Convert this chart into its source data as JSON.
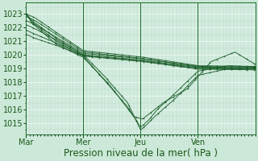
{
  "xlabel": "Pression niveau de la mer( hPa )",
  "bg_color": "#cce8d8",
  "plot_bg_color": "#d4ece0",
  "grid_color_major": "#b0d8c0",
  "grid_color_minor": "#c0e0cc",
  "grid_color_white": "#e8f8f0",
  "line_color": "#1a5c28",
  "ylim": [
    1014.2,
    1023.8
  ],
  "yticks": [
    1015,
    1016,
    1017,
    1018,
    1019,
    1020,
    1021,
    1022,
    1023
  ],
  "days": [
    "Mar",
    "Mer",
    "Jeu",
    "Ven"
  ],
  "day_positions": [
    0,
    96,
    192,
    288
  ],
  "total_hours": 384,
  "xlabel_fontsize": 8.5,
  "tick_fontsize": 7
}
